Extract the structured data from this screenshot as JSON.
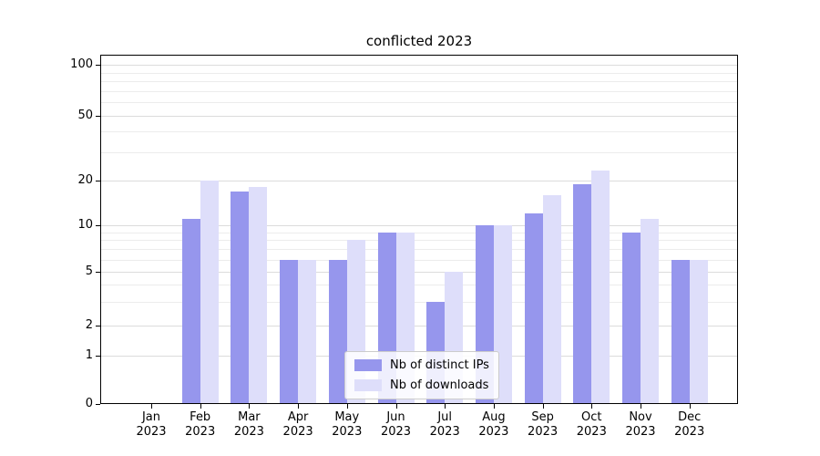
{
  "chart_data": {
    "type": "bar",
    "title": "conflicted 2023",
    "categories": [
      "Jan",
      "Feb",
      "Mar",
      "Apr",
      "May",
      "Jun",
      "Jul",
      "Aug",
      "Sep",
      "Oct",
      "Nov",
      "Dec"
    ],
    "category_year": "2023",
    "series": [
      {
        "name": "Nb of distinct IPs",
        "color": "#9696ed",
        "values": [
          0,
          11,
          17,
          6,
          6,
          9,
          3,
          10,
          12,
          19,
          9,
          6
        ]
      },
      {
        "name": "Nb of downloads",
        "color": "#dedefa",
        "values": [
          0,
          20,
          18,
          6,
          8,
          9,
          5,
          10,
          16,
          23,
          11,
          6
        ]
      }
    ],
    "yscale": "symlog",
    "ylim": [
      0,
      120
    ],
    "y_tick_labels": [
      "100",
      "50",
      "20",
      "10",
      "5",
      "2",
      "1",
      "0"
    ],
    "grid": true,
    "legend": {
      "position": "lower center",
      "entries": [
        "Nb of distinct IPs",
        "Nb of downloads"
      ]
    }
  }
}
